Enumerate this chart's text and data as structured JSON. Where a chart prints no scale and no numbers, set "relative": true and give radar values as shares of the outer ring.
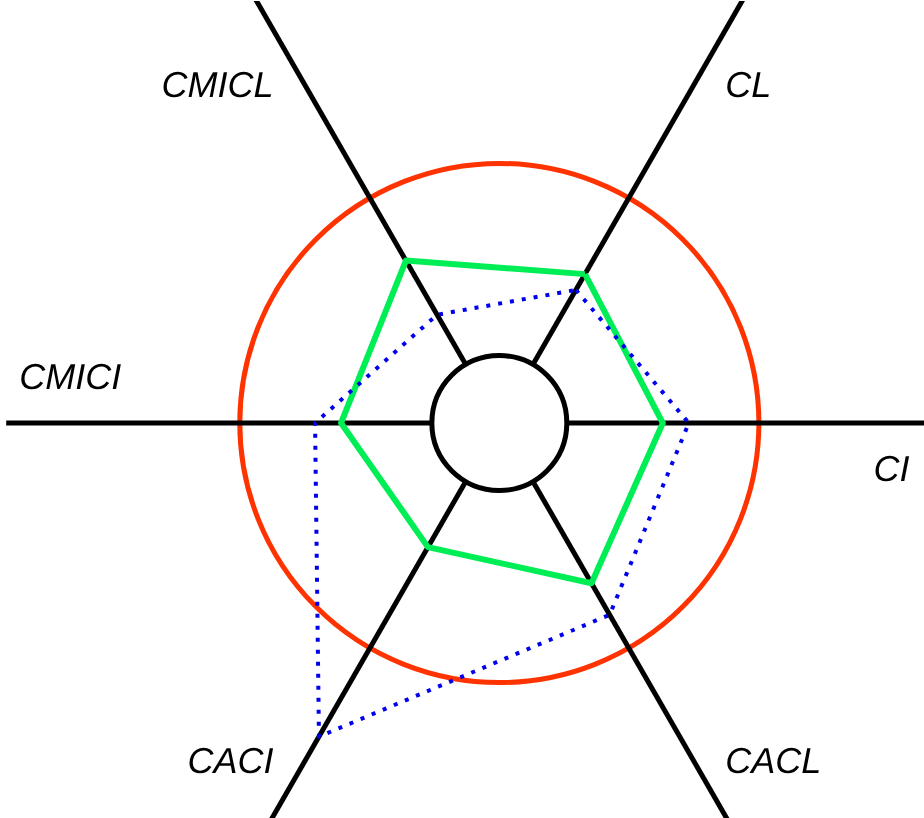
{
  "chart_data": {
    "type": "radar",
    "relative": true,
    "categories": [
      "CL",
      "CI",
      "CACL",
      "CACI",
      "CMICI",
      "CMICL"
    ],
    "series": [
      {
        "color": "#00ee55",
        "line_style": "solid",
        "values": [
          0.66,
          0.63,
          0.71,
          0.55,
          0.61,
          0.72
        ]
      },
      {
        "color": "#0000ee",
        "line_style": "dotted",
        "values": [
          0.59,
          0.73,
          0.85,
          1.39,
          0.71,
          0.48
        ]
      }
    ],
    "grid": true
  }
}
